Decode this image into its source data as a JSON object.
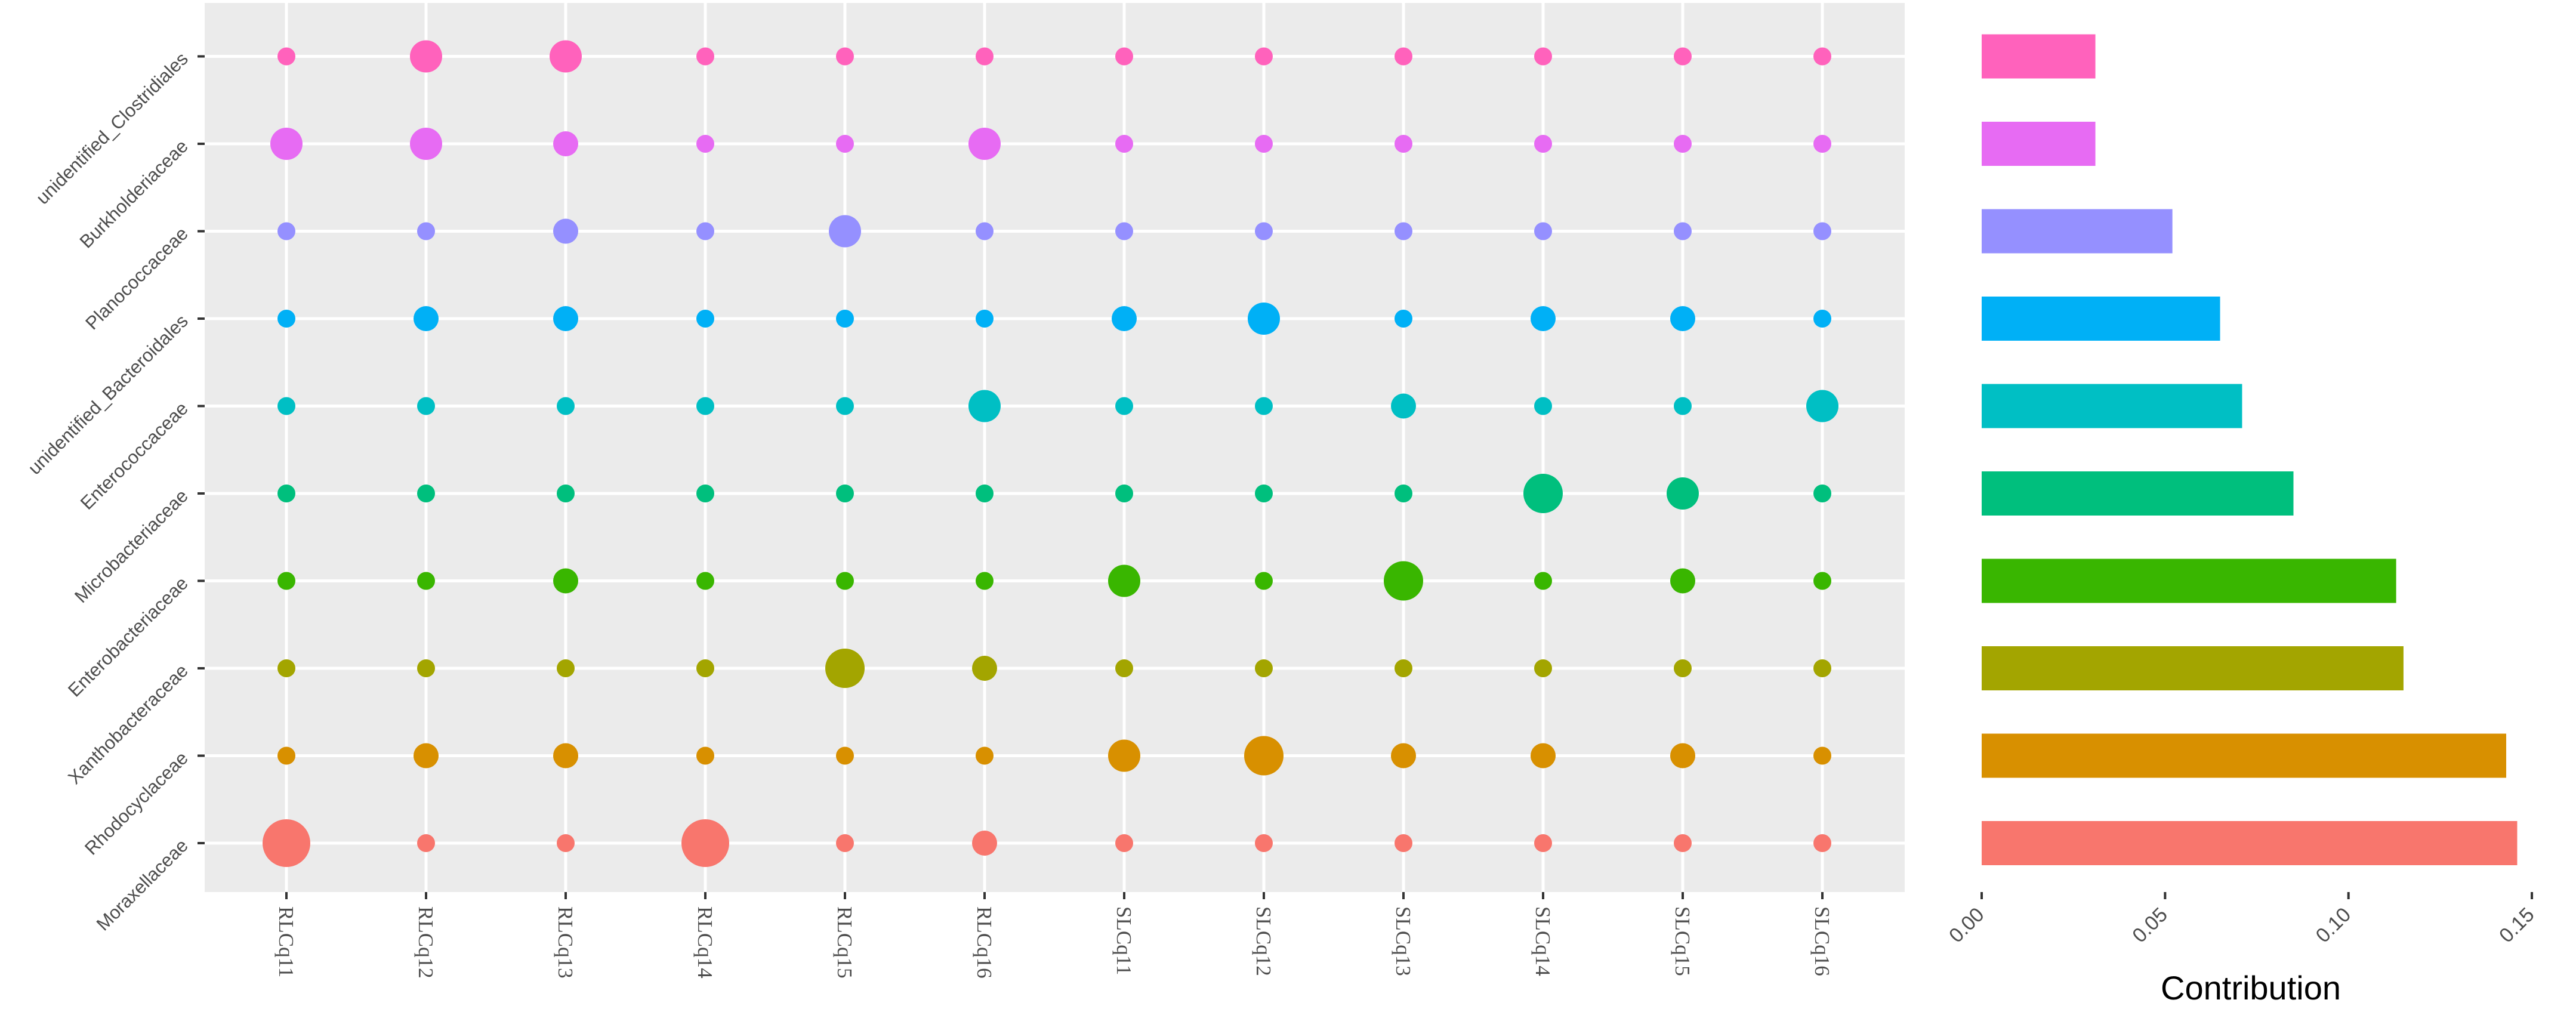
{
  "chart_data": [
    {
      "type": "bubble",
      "title": "",
      "xlabel": "",
      "ylabel": "",
      "samples": [
        "RLCq11",
        "RLCq12",
        "RLCq13",
        "RLCq14",
        "RLCq15",
        "RLCq16",
        "SLCq11",
        "SLCq12",
        "SLCq13",
        "SLCq14",
        "SLCq15",
        "SLCq16"
      ],
      "families": [
        "Moraxellaceae",
        "Rhodocyclaceae",
        "Xanthobacteraceae",
        "Enterobacteriaceae",
        "Microbacteriaceae",
        "Enterococcaceae",
        "unidentified_Bacteroidales",
        "Planococcaceae",
        "Burkholderiaceae",
        "unidentified_Clostridiales"
      ],
      "size_meaning": "relative abundance (size levels 1-5)",
      "grid": true,
      "legend": "none",
      "sizes": [
        [
          5,
          1,
          1,
          5,
          1,
          2,
          1,
          1,
          1,
          1,
          1,
          1
        ],
        [
          1,
          2,
          2,
          1,
          1,
          1,
          3,
          4,
          2,
          2,
          2,
          1
        ],
        [
          1,
          1,
          1,
          1,
          4,
          2,
          1,
          1,
          1,
          1,
          1,
          1
        ],
        [
          1,
          1,
          2,
          1,
          1,
          1,
          3,
          1,
          4,
          1,
          2,
          1
        ],
        [
          1,
          1,
          1,
          1,
          1,
          1,
          1,
          1,
          1,
          4,
          3,
          1
        ],
        [
          1,
          1,
          1,
          1,
          1,
          3,
          1,
          1,
          2,
          1,
          1,
          3
        ],
        [
          1,
          2,
          2,
          1,
          1,
          1,
          2,
          3,
          1,
          2,
          2,
          1
        ],
        [
          1,
          1,
          2,
          1,
          3,
          1,
          1,
          1,
          1,
          1,
          1,
          1
        ],
        [
          3,
          3,
          2,
          1,
          1,
          3,
          1,
          1,
          1,
          1,
          1,
          1
        ],
        [
          1,
          3,
          3,
          1,
          1,
          1,
          1,
          1,
          1,
          1,
          1,
          1
        ]
      ]
    },
    {
      "type": "bar",
      "orientation": "horizontal",
      "title": "",
      "xlabel": "Contribution",
      "ylabel": "",
      "categories": [
        "Moraxellaceae",
        "Rhodocyclaceae",
        "Xanthobacteraceae",
        "Enterobacteriaceae",
        "Microbacteriaceae",
        "Enterococcaceae",
        "unidentified_Bacteroidales",
        "Planococcaceae",
        "Burkholderiaceae",
        "unidentified_Clostridiales"
      ],
      "values": [
        0.146,
        0.143,
        0.115,
        0.113,
        0.085,
        0.071,
        0.065,
        0.052,
        0.031,
        0.031
      ],
      "xlim": [
        0,
        0.15
      ],
      "xticks": [
        "0.00",
        "0.05",
        "0.10",
        "0.15"
      ],
      "grid": false
    }
  ],
  "colors": [
    "#F8766D",
    "#D89000",
    "#A3A500",
    "#39B600",
    "#00BF7D",
    "#00BFC4",
    "#00B0F6",
    "#9590FF",
    "#E76BF3",
    "#FF62BC"
  ],
  "panel_background": "#EBEBEB"
}
